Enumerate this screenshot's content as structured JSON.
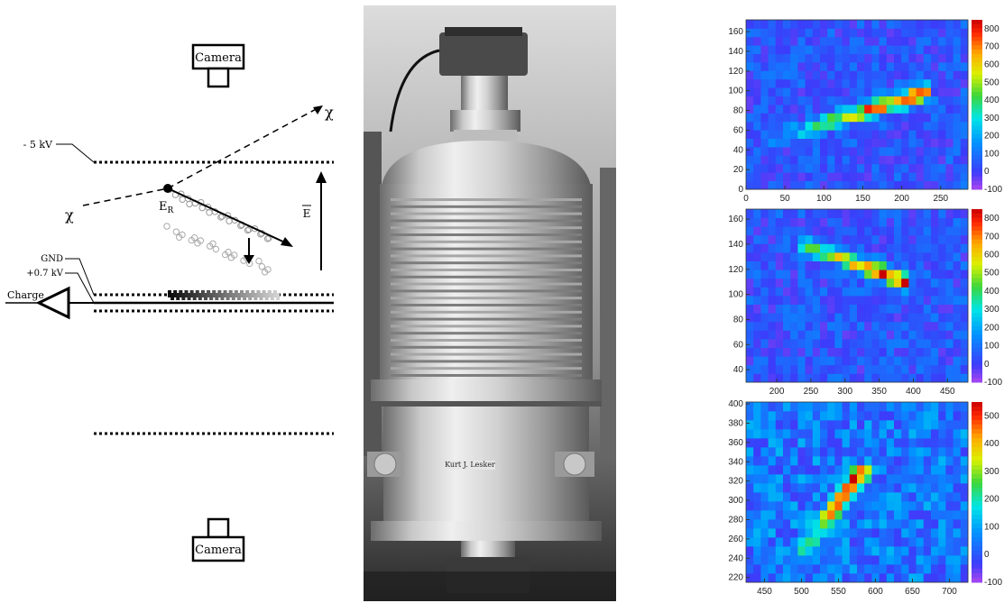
{
  "schematic": {
    "camera_top": "Camera",
    "camera_bottom": "Camera",
    "voltage_top": "- 5 kV",
    "gnd": "GND",
    "voltage_anode": "+0.7 kV",
    "charge": "Charge",
    "chi_in": "χ",
    "chi_out": "χ",
    "recoil": "E",
    "recoil_sub": "R",
    "field": "E"
  },
  "photo": {
    "label_plate": "Kurt J. Lesker"
  },
  "chart_data": [
    {
      "type": "heatmap",
      "title": "",
      "xlabel": "",
      "ylabel": "",
      "x_ticks": [
        "0",
        "50",
        "100",
        "150",
        "200",
        "250"
      ],
      "y_ticks": [
        "0",
        "20",
        "40",
        "60",
        "80",
        "100",
        "120",
        "140",
        "160"
      ],
      "xlim": [
        0,
        285
      ],
      "ylim": [
        0,
        172
      ],
      "colorbar_ticks": [
        "800",
        "700",
        "600",
        "500",
        "400",
        "300",
        "200",
        "100",
        "0",
        "-100"
      ],
      "zlim": [
        -100,
        850
      ],
      "track": {
        "x": [
          40,
          230
        ],
        "y": [
          52,
          98
        ],
        "peak_x": 205,
        "peak_value": 820,
        "start_value": 80
      }
    },
    {
      "type": "heatmap",
      "title": "",
      "xlabel": "",
      "ylabel": "",
      "x_ticks": [
        "200",
        "250",
        "300",
        "350",
        "400",
        "450"
      ],
      "y_ticks": [
        "40",
        "60",
        "80",
        "100",
        "120",
        "140",
        "160"
      ],
      "xlim": [
        155,
        480
      ],
      "ylim": [
        30,
        168
      ],
      "colorbar_ticks": [
        "800",
        "700",
        "600",
        "500",
        "400",
        "300",
        "200",
        "100",
        "0",
        "-100"
      ],
      "zlim": [
        -100,
        850
      ],
      "track": {
        "x": [
          240,
          390
        ],
        "y": [
          140,
          110
        ],
        "peak_x": 380,
        "peak_value": 820,
        "start_value": 300
      }
    },
    {
      "type": "heatmap",
      "title": "",
      "xlabel": "",
      "ylabel": "",
      "x_ticks": [
        "450",
        "500",
        "550",
        "600",
        "650",
        "700"
      ],
      "y_ticks": [
        "220",
        "240",
        "260",
        "280",
        "300",
        "320",
        "340",
        "360",
        "380",
        "400"
      ],
      "xlim": [
        425,
        725
      ],
      "ylim": [
        215,
        402
      ],
      "colorbar_ticks": [
        "500",
        "400",
        "300",
        "200",
        "100",
        "0",
        "-100"
      ],
      "zlim": [
        -100,
        550
      ],
      "track": {
        "x": [
          505,
          580
        ],
        "y": [
          248,
          330
        ],
        "peak_x": 570,
        "peak_value": 520,
        "start_value": 120
      }
    }
  ]
}
